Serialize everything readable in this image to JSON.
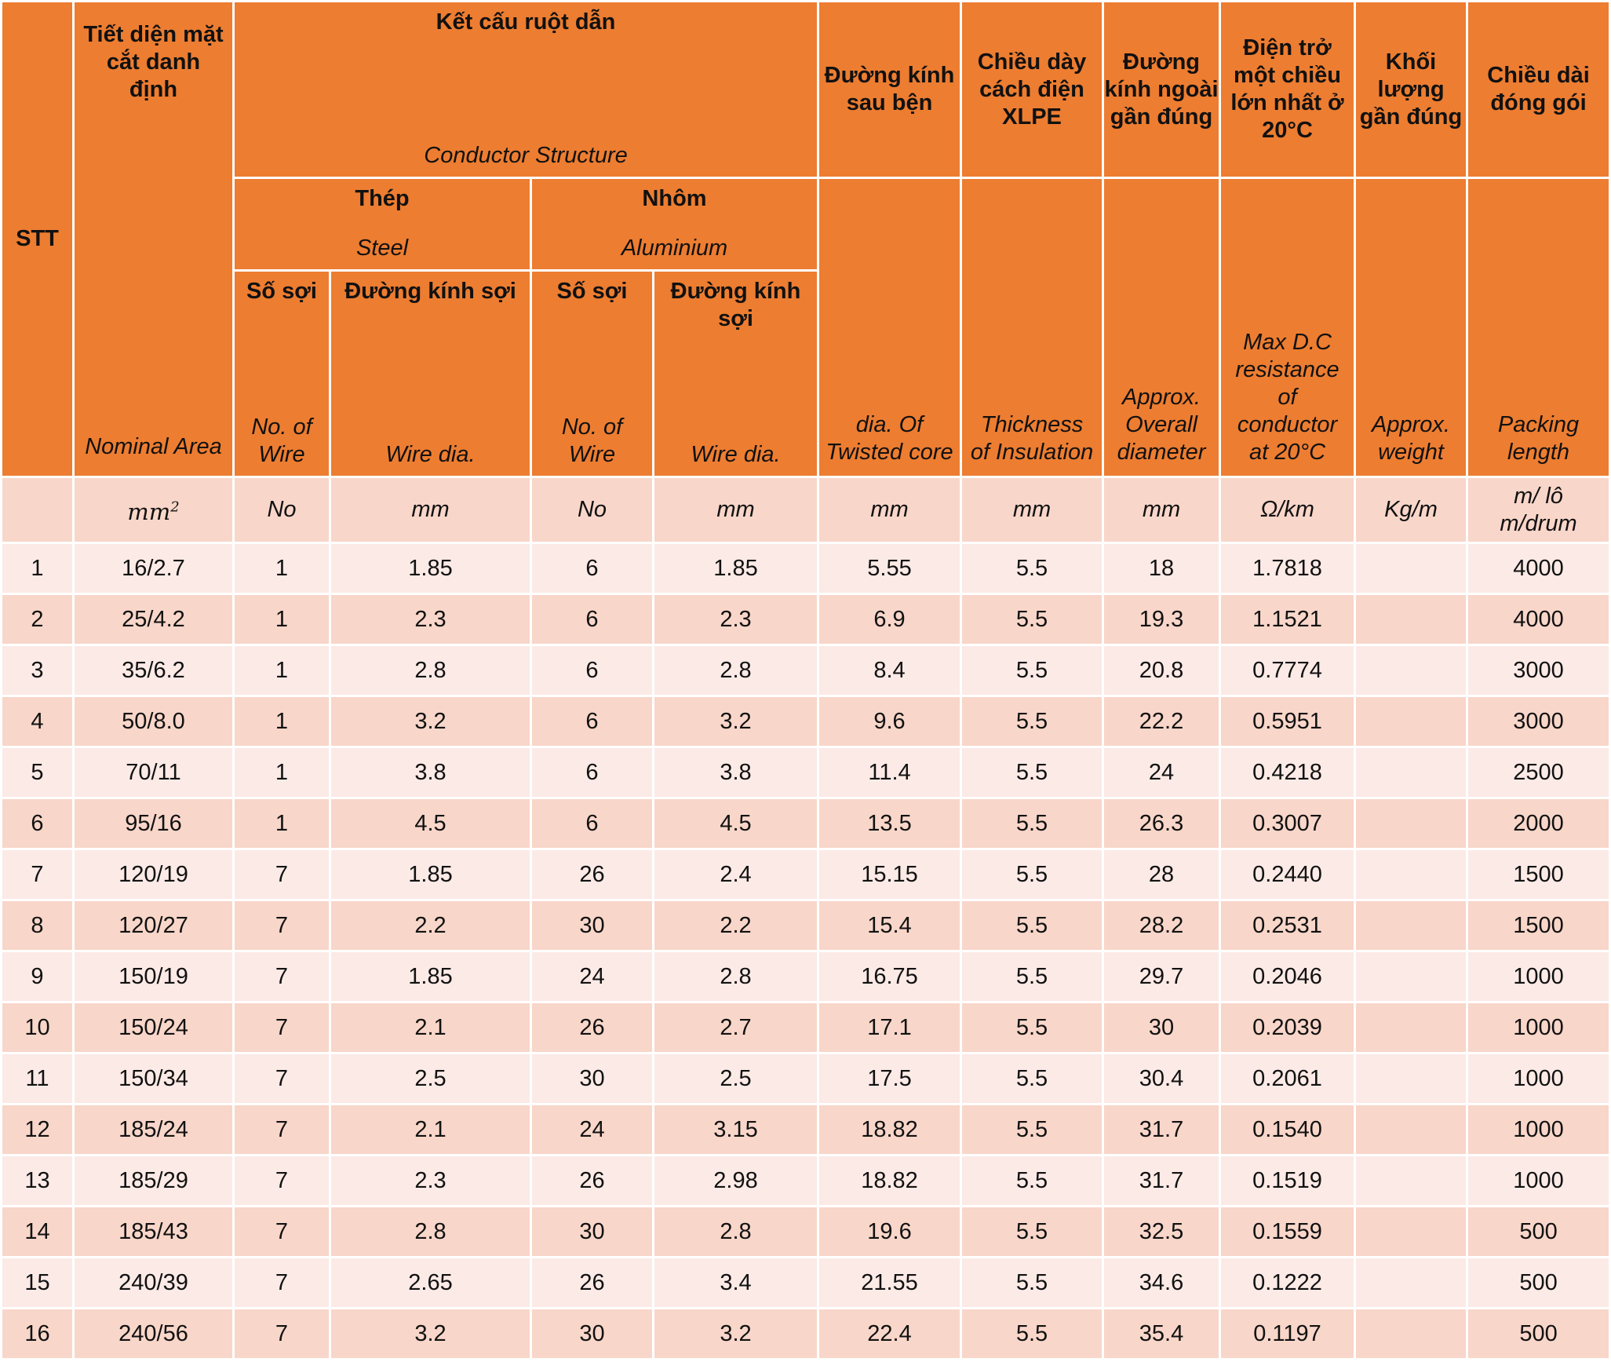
{
  "header": {
    "stt": "STT",
    "nominal": {
      "vi": "Tiết diện mặt cắt danh định",
      "en": "Nominal Area"
    },
    "conductor": {
      "vi": "Kết cấu ruột dẫn",
      "en": "Conductor Structure"
    },
    "steel": {
      "vi": "Thép",
      "en": "Steel"
    },
    "aluminium": {
      "vi": "Nhôm",
      "en": "Aluminium"
    },
    "steel_no": {
      "vi": "Số sợi",
      "en": "No. of Wire"
    },
    "steel_dia": {
      "vi": "Đường kính sợi",
      "en": "Wire dia."
    },
    "al_no": {
      "vi": "Số sợi",
      "en": "No. of Wire"
    },
    "al_dia": {
      "vi": "Đường kính sợi",
      "en": "Wire dia."
    },
    "twisted": {
      "vi": "Đường kính sau bện",
      "en": "dia. Of Twisted core"
    },
    "insulation": {
      "vi": "Chiều dày cách điện XLPE",
      "en": "Thickness of Insulation"
    },
    "overall": {
      "vi": "Đường kính ngoài gần đúng",
      "en": "Approx. Overall diameter"
    },
    "resistance": {
      "vi": "Điện trở một chiều lớn nhất ở 20°C",
      "en": "Max D.C resistance of conductor at 20°C"
    },
    "weight": {
      "vi": "Khối lượng gần đúng",
      "en": "Approx. weight"
    },
    "packing": {
      "vi": "Chiều dài đóng gói",
      "en": "Packing length"
    }
  },
  "units": {
    "stt": "",
    "nominal": "mm",
    "nominal_exp": "2",
    "steel_no": "No",
    "steel_dia": "mm",
    "al_no": "No",
    "al_dia": "mm",
    "twisted": "mm",
    "insulation": "mm",
    "overall": "mm",
    "resistance": "Ω/km",
    "weight": "Kg/m",
    "packing": "m/ lô m/drum"
  },
  "rows": [
    [
      "1",
      "16/2.7",
      "1",
      "1.85",
      "6",
      "1.85",
      "5.55",
      "5.5",
      "18",
      "1.7818",
      "",
      "4000"
    ],
    [
      "2",
      "25/4.2",
      "1",
      "2.3",
      "6",
      "2.3",
      "6.9",
      "5.5",
      "19.3",
      "1.1521",
      "",
      "4000"
    ],
    [
      "3",
      "35/6.2",
      "1",
      "2.8",
      "6",
      "2.8",
      "8.4",
      "5.5",
      "20.8",
      "0.7774",
      "",
      "3000"
    ],
    [
      "4",
      "50/8.0",
      "1",
      "3.2",
      "6",
      "3.2",
      "9.6",
      "5.5",
      "22.2",
      "0.5951",
      "",
      "3000"
    ],
    [
      "5",
      "70/11",
      "1",
      "3.8",
      "6",
      "3.8",
      "11.4",
      "5.5",
      "24",
      "0.4218",
      "",
      "2500"
    ],
    [
      "6",
      "95/16",
      "1",
      "4.5",
      "6",
      "4.5",
      "13.5",
      "5.5",
      "26.3",
      "0.3007",
      "",
      "2000"
    ],
    [
      "7",
      "120/19",
      "7",
      "1.85",
      "26",
      "2.4",
      "15.15",
      "5.5",
      "28",
      "0.2440",
      "",
      "1500"
    ],
    [
      "8",
      "120/27",
      "7",
      "2.2",
      "30",
      "2.2",
      "15.4",
      "5.5",
      "28.2",
      "0.2531",
      "",
      "1500"
    ],
    [
      "9",
      "150/19",
      "7",
      "1.85",
      "24",
      "2.8",
      "16.75",
      "5.5",
      "29.7",
      "0.2046",
      "",
      "1000"
    ],
    [
      "10",
      "150/24",
      "7",
      "2.1",
      "26",
      "2.7",
      "17.1",
      "5.5",
      "30",
      "0.2039",
      "",
      "1000"
    ],
    [
      "11",
      "150/34",
      "7",
      "2.5",
      "30",
      "2.5",
      "17.5",
      "5.5",
      "30.4",
      "0.2061",
      "",
      "1000"
    ],
    [
      "12",
      "185/24",
      "7",
      "2.1",
      "24",
      "3.15",
      "18.82",
      "5.5",
      "31.7",
      "0.1540",
      "",
      "1000"
    ],
    [
      "13",
      "185/29",
      "7",
      "2.3",
      "26",
      "2.98",
      "18.82",
      "5.5",
      "31.7",
      "0.1519",
      "",
      "1000"
    ],
    [
      "14",
      "185/43",
      "7",
      "2.8",
      "30",
      "2.8",
      "19.6",
      "5.5",
      "32.5",
      "0.1559",
      "",
      "500"
    ],
    [
      "15",
      "240/39",
      "7",
      "2.65",
      "26",
      "3.4",
      "21.55",
      "5.5",
      "34.6",
      "0.1222",
      "",
      "500"
    ],
    [
      "16",
      "240/56",
      "7",
      "3.2",
      "30",
      "3.2",
      "22.4",
      "5.5",
      "35.4",
      "0.1197",
      "",
      "500"
    ]
  ]
}
